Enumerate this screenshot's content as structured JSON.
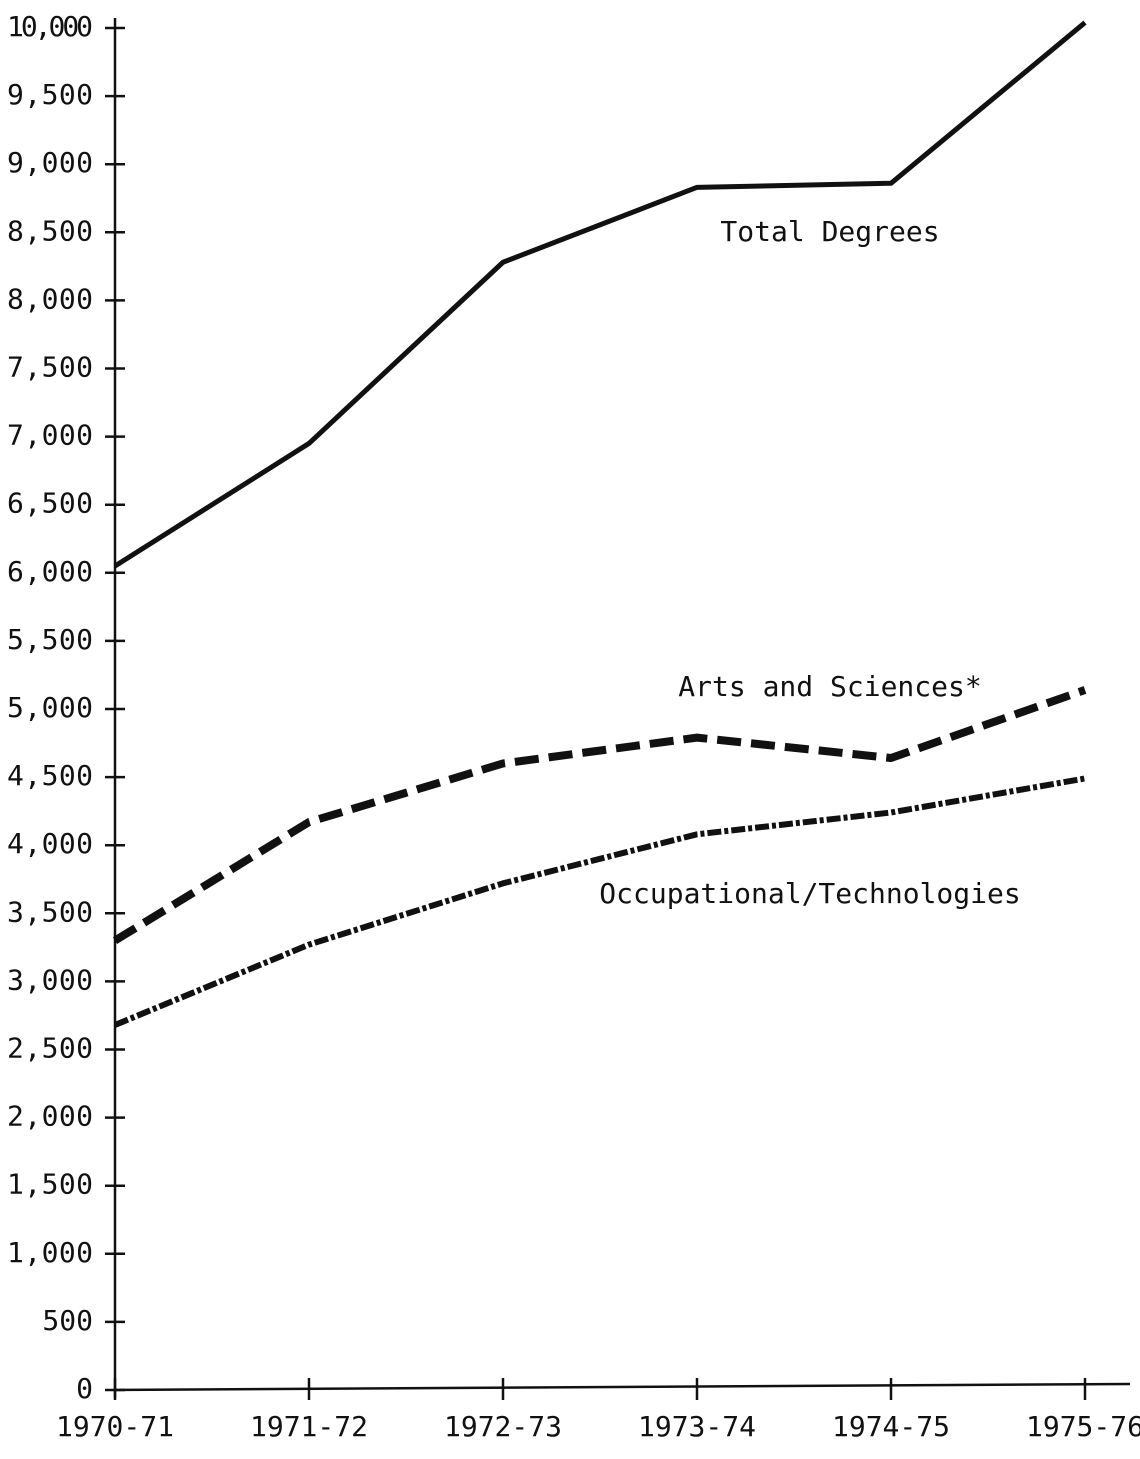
{
  "chart_data": {
    "type": "line",
    "categories": [
      "1970-71",
      "1971-72",
      "1972-73",
      "1973-74",
      "1974-75",
      "1975-76"
    ],
    "series": [
      {
        "name": "Total Degrees",
        "color": "#111111",
        "style": "solid",
        "values": [
          6050,
          6950,
          8280,
          8830,
          8860,
          10040
        ]
      },
      {
        "name": "Arts and Sciences*",
        "color": "#111111",
        "style": "dashed",
        "values": [
          3300,
          4170,
          4600,
          4790,
          4640,
          5140
        ]
      },
      {
        "name": "Occupational/Technologies",
        "color": "#111111",
        "style": "dotted",
        "values": [
          2680,
          3270,
          3720,
          4080,
          4240,
          4490
        ]
      }
    ],
    "ylim": [
      0,
      10000
    ],
    "yticks": [
      0,
      500,
      {
        "value": 1000,
        "label": "1,000"
      },
      {
        "value": 1500,
        "label": "1,500"
      },
      {
        "value": 2000,
        "label": "2,000"
      },
      {
        "value": 2500,
        "label": "2,500"
      },
      {
        "value": 3000,
        "label": "3,000"
      },
      {
        "value": 3500,
        "label": "3,500"
      },
      {
        "value": 4000,
        "label": "4,000"
      },
      {
        "value": 4500,
        "label": "4,500"
      },
      {
        "value": 5000,
        "label": "5,000"
      },
      {
        "value": 5500,
        "label": "5,500"
      },
      {
        "value": 6000,
        "label": "6,000"
      },
      {
        "value": 6500,
        "label": "6,500"
      },
      {
        "value": 7000,
        "label": "7,000"
      },
      {
        "value": 7500,
        "label": "7,500"
      },
      {
        "value": 8000,
        "label": "8,000"
      },
      {
        "value": 8500,
        "label": "8,500"
      },
      {
        "value": 9000,
        "label": "9,000"
      },
      {
        "value": 9500,
        "label": "9,500"
      },
      {
        "value": 10000,
        "label": "10,000"
      }
    ],
    "grid": false
  }
}
